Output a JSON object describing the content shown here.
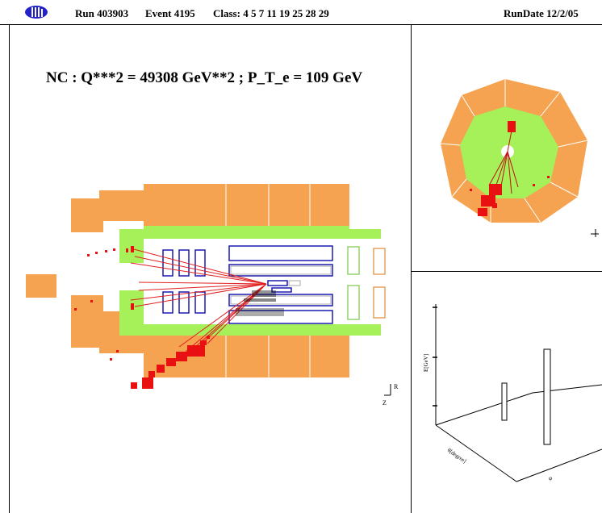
{
  "header": {
    "logo_icon": "h1-logo",
    "run_label": "Run 403903",
    "event_label": "Event 4195",
    "class_label": "Class: 4 5 7 11 19 25 28 29",
    "rundate_label": "RunDate 12/2/05"
  },
  "main_view": {
    "title": "NC : Q***2 = 49308 GeV**2 ; P_T_e = 109 GeV",
    "axis_z": "Z",
    "axis_r": "R"
  },
  "lego_view": {
    "axis_energy": "E[GeV]",
    "axis_theta": "θ[degree]",
    "axis_phi": "φ"
  },
  "colors": {
    "calorimeter_outer": "#f5a350",
    "calorimeter_inner": "#a6f05a",
    "tracker": "#1a1ab4",
    "energy_deposit": "#e81010",
    "track": "#e02020"
  }
}
